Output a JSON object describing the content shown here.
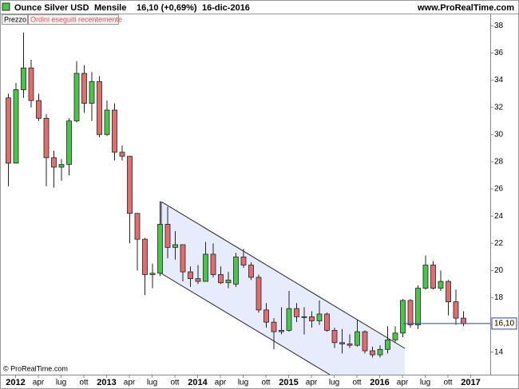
{
  "chart_data": {
    "type": "candlestick",
    "title": "Ounce Silver USD",
    "period": "Mensile",
    "last_change": "16,10 (+0,69%)",
    "date": "16-dic-2016",
    "source": "www.ProRealTime.com",
    "copyright": "© ProRealTime.com",
    "legend_labels": [
      "Prezzo",
      "Ordini eseguiti recentemente"
    ],
    "categories": [
      null,
      "2012",
      null,
      null,
      "apr",
      null,
      null,
      "lug",
      null,
      null,
      "ott",
      null,
      null,
      "2013",
      null,
      null,
      "apr",
      null,
      null,
      "lug",
      null,
      null,
      "ott",
      null,
      null,
      "2014",
      null,
      null,
      "apr",
      null,
      null,
      "lug",
      null,
      null,
      "ott",
      null,
      null,
      "2015",
      null,
      null,
      "apr",
      null,
      null,
      "lug",
      null,
      null,
      "ott",
      null,
      null,
      "2016",
      null,
      null,
      "apr",
      null,
      null,
      "lug",
      null,
      null,
      "ott",
      null,
      null,
      "2017"
    ],
    "open": [
      32.7,
      27.9,
      33.3,
      34.9,
      32.5,
      31.2,
      28.3,
      27.6,
      27.8,
      31.0,
      34.5,
      32.3,
      33.9,
      30.0,
      31.8,
      28.7,
      28.4,
      24.2,
      22.3,
      19.7,
      19.8,
      23.4,
      21.7,
      21.9,
      19.9,
      19.4,
      19.2,
      21.2,
      19.7,
      19.1,
      19.0,
      21.0,
      20.4,
      19.5,
      17.1,
      16.2,
      15.5,
      15.6,
      17.2,
      16.6,
      16.6,
      16.3,
      16.8,
      15.6,
      14.7,
      14.6,
      14.5,
      15.5,
      14.1,
      13.8,
      14.2,
      14.9,
      15.4,
      17.8,
      16.0,
      18.7,
      20.4,
      18.7,
      19.2,
      17.7,
      16.5,
      null
    ],
    "high": [
      33.0,
      33.8,
      37.5,
      35.5,
      33.0,
      31.5,
      28.8,
      28.2,
      31.2,
      35.4,
      35.1,
      34.6,
      34.3,
      32.5,
      32.3,
      29.2,
      28.4,
      24.2,
      22.4,
      20.5,
      25.1,
      24.7,
      22.9,
      21.9,
      20.3,
      20.4,
      22.1,
      22.0,
      20.3,
      19.9,
      21.3,
      21.6,
      20.6,
      19.7,
      17.6,
      16.5,
      17.3,
      18.5,
      17.6,
      17.3,
      17.0,
      17.8,
      16.9,
      15.8,
      15.7,
      15.3,
      16.4,
      15.6,
      14.4,
      14.5,
      15.9,
      15.9,
      17.9,
      17.9,
      18.9,
      21.1,
      20.7,
      20.0,
      19.3,
      18.6,
      17.0,
      null
    ],
    "low": [
      26.2,
      27.9,
      32.7,
      32.0,
      31.0,
      26.2,
      26.1,
      26.6,
      27.0,
      30.9,
      31.6,
      31.0,
      29.8,
      29.9,
      28.1,
      28.1,
      22.0,
      20.0,
      18.2,
      18.7,
      19.6,
      20.9,
      20.8,
      19.2,
      18.8,
      19.0,
      19.2,
      19.5,
      19.0,
      18.7,
      18.8,
      20.2,
      19.3,
      16.9,
      15.8,
      14.2,
      15.3,
      15.5,
      16.2,
      15.3,
      15.8,
      16.0,
      15.5,
      14.3,
      13.9,
      14.3,
      14.4,
      13.9,
      13.6,
      13.6,
      13.9,
      14.7,
      15.1,
      15.8,
      15.7,
      18.6,
      18.6,
      18.5,
      16.7,
      16.0,
      15.9,
      null
    ],
    "close": [
      27.9,
      33.3,
      34.9,
      32.5,
      31.2,
      28.3,
      27.6,
      27.8,
      31.0,
      34.5,
      32.3,
      33.9,
      30.0,
      31.8,
      28.7,
      28.4,
      24.2,
      22.3,
      19.7,
      19.8,
      23.4,
      21.7,
      21.9,
      19.9,
      19.4,
      19.2,
      21.2,
      19.7,
      19.1,
      19.3,
      21.0,
      20.4,
      19.5,
      17.1,
      16.2,
      15.5,
      15.6,
      17.2,
      16.6,
      16.6,
      16.3,
      16.8,
      15.6,
      14.7,
      14.6,
      14.5,
      15.5,
      14.1,
      13.8,
      14.2,
      14.9,
      15.4,
      17.8,
      16.0,
      18.7,
      20.4,
      18.7,
      19.2,
      17.7,
      16.5,
      16.1,
      null
    ],
    "up_color": "#46c846",
    "down_color": "#e26d6d",
    "last_line_color": "#2b3fd0",
    "last_price": {
      "value": 16.1,
      "label": "16,10"
    },
    "ylim": [
      12.4,
      38.9
    ],
    "yticks": [
      14,
      16,
      18,
      20,
      22,
      24,
      26,
      28,
      30,
      32,
      34,
      36,
      38
    ],
    "grid": false
  }
}
